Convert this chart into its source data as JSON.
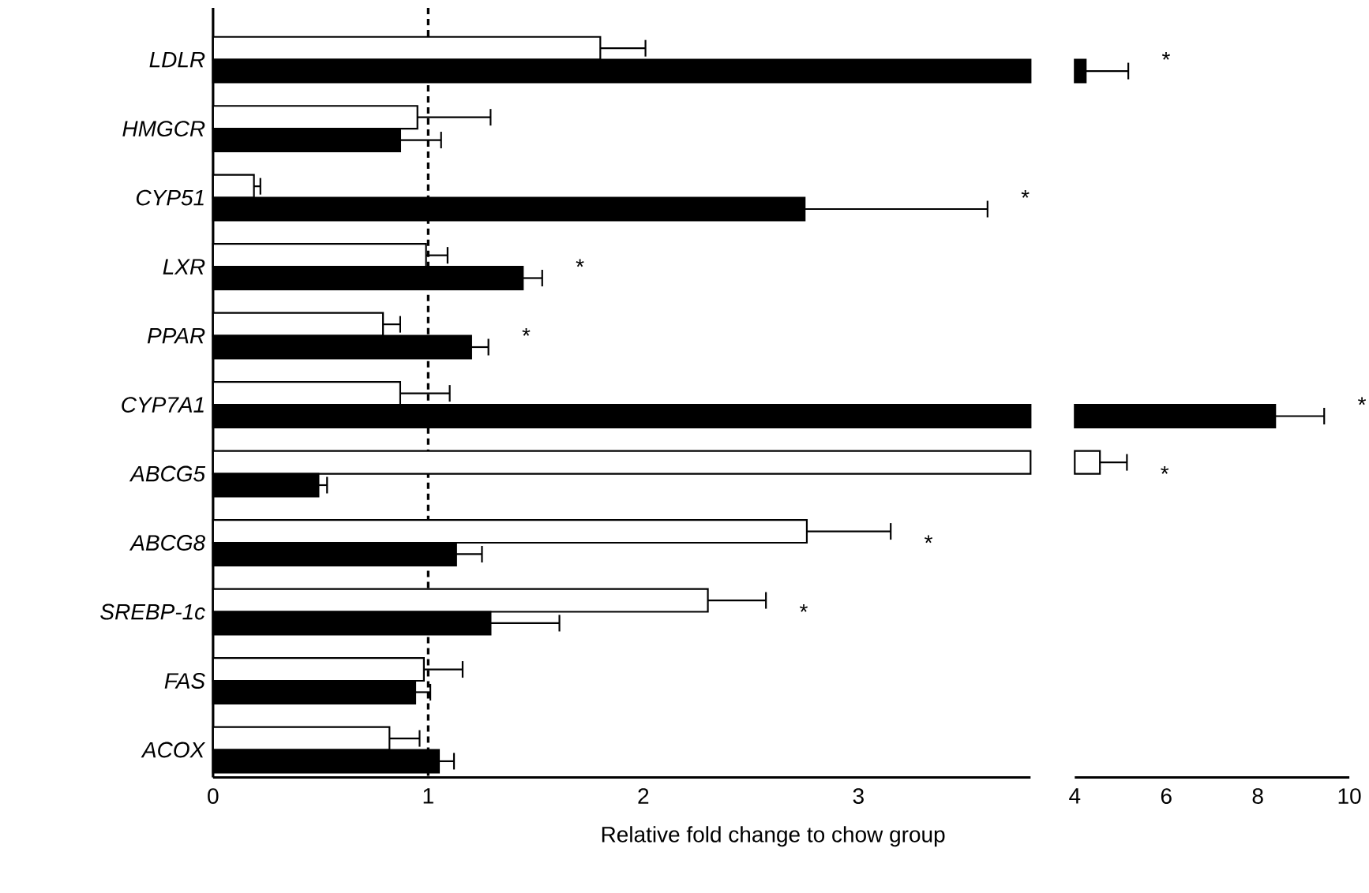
{
  "chart_data": [
    {
      "type": "bar",
      "orientation": "horizontal",
      "xlabel": "Relative fold change to chow group",
      "categories": [
        "*LDLR*",
        "*HMGCR*",
        "*CYP51*",
        "*LXR*",
        "*PPAR*",
        "*CYP7A1*",
        "*ABCG5*",
        "*ABCG8*",
        "*SREBP-1c*",
        "*FAS*",
        "*ACOX*"
      ],
      "xlim": [
        0,
        3.8
      ],
      "xticks": [
        0,
        1,
        2,
        3
      ],
      "series": [
        {
          "color": "#ffffff",
          "values": [
            1.8,
            0.95,
            0.19,
            0.99,
            0.79,
            0.87,
            3.8,
            2.76,
            2.3,
            0.98,
            0.82
          ],
          "errors": [
            [
              1.8,
              2.01
            ],
            [
              0.95,
              1.29
            ],
            [
              0.19,
              0.22
            ],
            [
              0.99,
              1.09
            ],
            [
              0.79,
              0.87
            ],
            [
              0.87,
              1.1
            ],
            null,
            [
              2.76,
              3.15
            ],
            [
              2.3,
              2.57
            ],
            [
              0.98,
              1.16
            ],
            [
              0.82,
              0.96
            ]
          ]
        },
        {
          "color": "#000000",
          "values": [
            3.8,
            0.87,
            2.75,
            1.44,
            1.2,
            3.8,
            0.49,
            1.13,
            1.29,
            0.94,
            1.05
          ],
          "errors": [
            null,
            [
              0.87,
              1.06
            ],
            [
              2.75,
              3.6
            ],
            [
              1.44,
              1.53
            ],
            [
              1.2,
              1.28
            ],
            null,
            [
              0.49,
              0.53
            ],
            [
              1.13,
              1.25
            ],
            [
              1.29,
              1.61
            ],
            [
              0.94,
              1.01
            ],
            [
              1.05,
              1.12
            ]
          ]
        }
      ],
      "ref_lines": [
        {
          "axis": "x",
          "value": 1,
          "line_style": "dashed"
        }
      ],
      "annotations": [
        {
          "text": "*",
          "x": 3.6,
          "y": "*CYP51*"
        },
        {
          "text": "*",
          "x": 1.53,
          "y": "*LXR*"
        },
        {
          "text": "*",
          "x": 1.28,
          "y": "*PPAR*"
        },
        {
          "text": "*",
          "x": 3.15,
          "y": "*ABCG8*"
        },
        {
          "text": "*",
          "x": 2.57,
          "y": "*SREBP-1c*"
        }
      ]
    },
    {
      "type": "bar",
      "orientation": "horizontal",
      "tick_labels": "x",
      "categories": [
        "*LDLR*",
        "*HMGCR*",
        "*CYP51*",
        "*LXR*",
        "*PPAR*",
        "*CYP7A1*",
        "*ABCG5*",
        "*ABCG8*",
        "*SREBP-1c*",
        "*FAS*",
        "*ACOX*"
      ],
      "xlim": [
        4,
        10
      ],
      "xticks": [
        4,
        6,
        8,
        10
      ],
      "series": [
        {
          "color": "#ffffff",
          "base": [
            null,
            null,
            null,
            null,
            null,
            null,
            4,
            null,
            null,
            null,
            null
          ],
          "values": [
            null,
            null,
            null,
            null,
            null,
            null,
            0.55,
            null,
            null,
            null,
            null
          ],
          "errors": [
            null,
            null,
            null,
            null,
            null,
            null,
            [
              4.55,
              5.14
            ],
            null,
            null,
            null,
            null
          ]
        },
        {
          "color": "#000000",
          "base": [
            4,
            null,
            null,
            null,
            null,
            4,
            null,
            null,
            null,
            null,
            null
          ],
          "values": [
            0.24,
            null,
            null,
            null,
            null,
            4.38,
            null,
            null,
            null,
            null,
            null
          ],
          "errors": [
            [
              4.24,
              5.17
            ],
            null,
            null,
            null,
            null,
            [
              8.38,
              9.45
            ],
            null,
            null,
            null,
            null,
            null
          ]
        }
      ],
      "annotations": [
        {
          "text": "*",
          "x": 5.17,
          "y": "*LDLR*"
        },
        {
          "text": "*",
          "x": 9.45,
          "y": "*CYP7A1*"
        },
        {
          "text": "*",
          "x": 5.14,
          "y": "*ABCG5*"
        }
      ]
    }
  ]
}
